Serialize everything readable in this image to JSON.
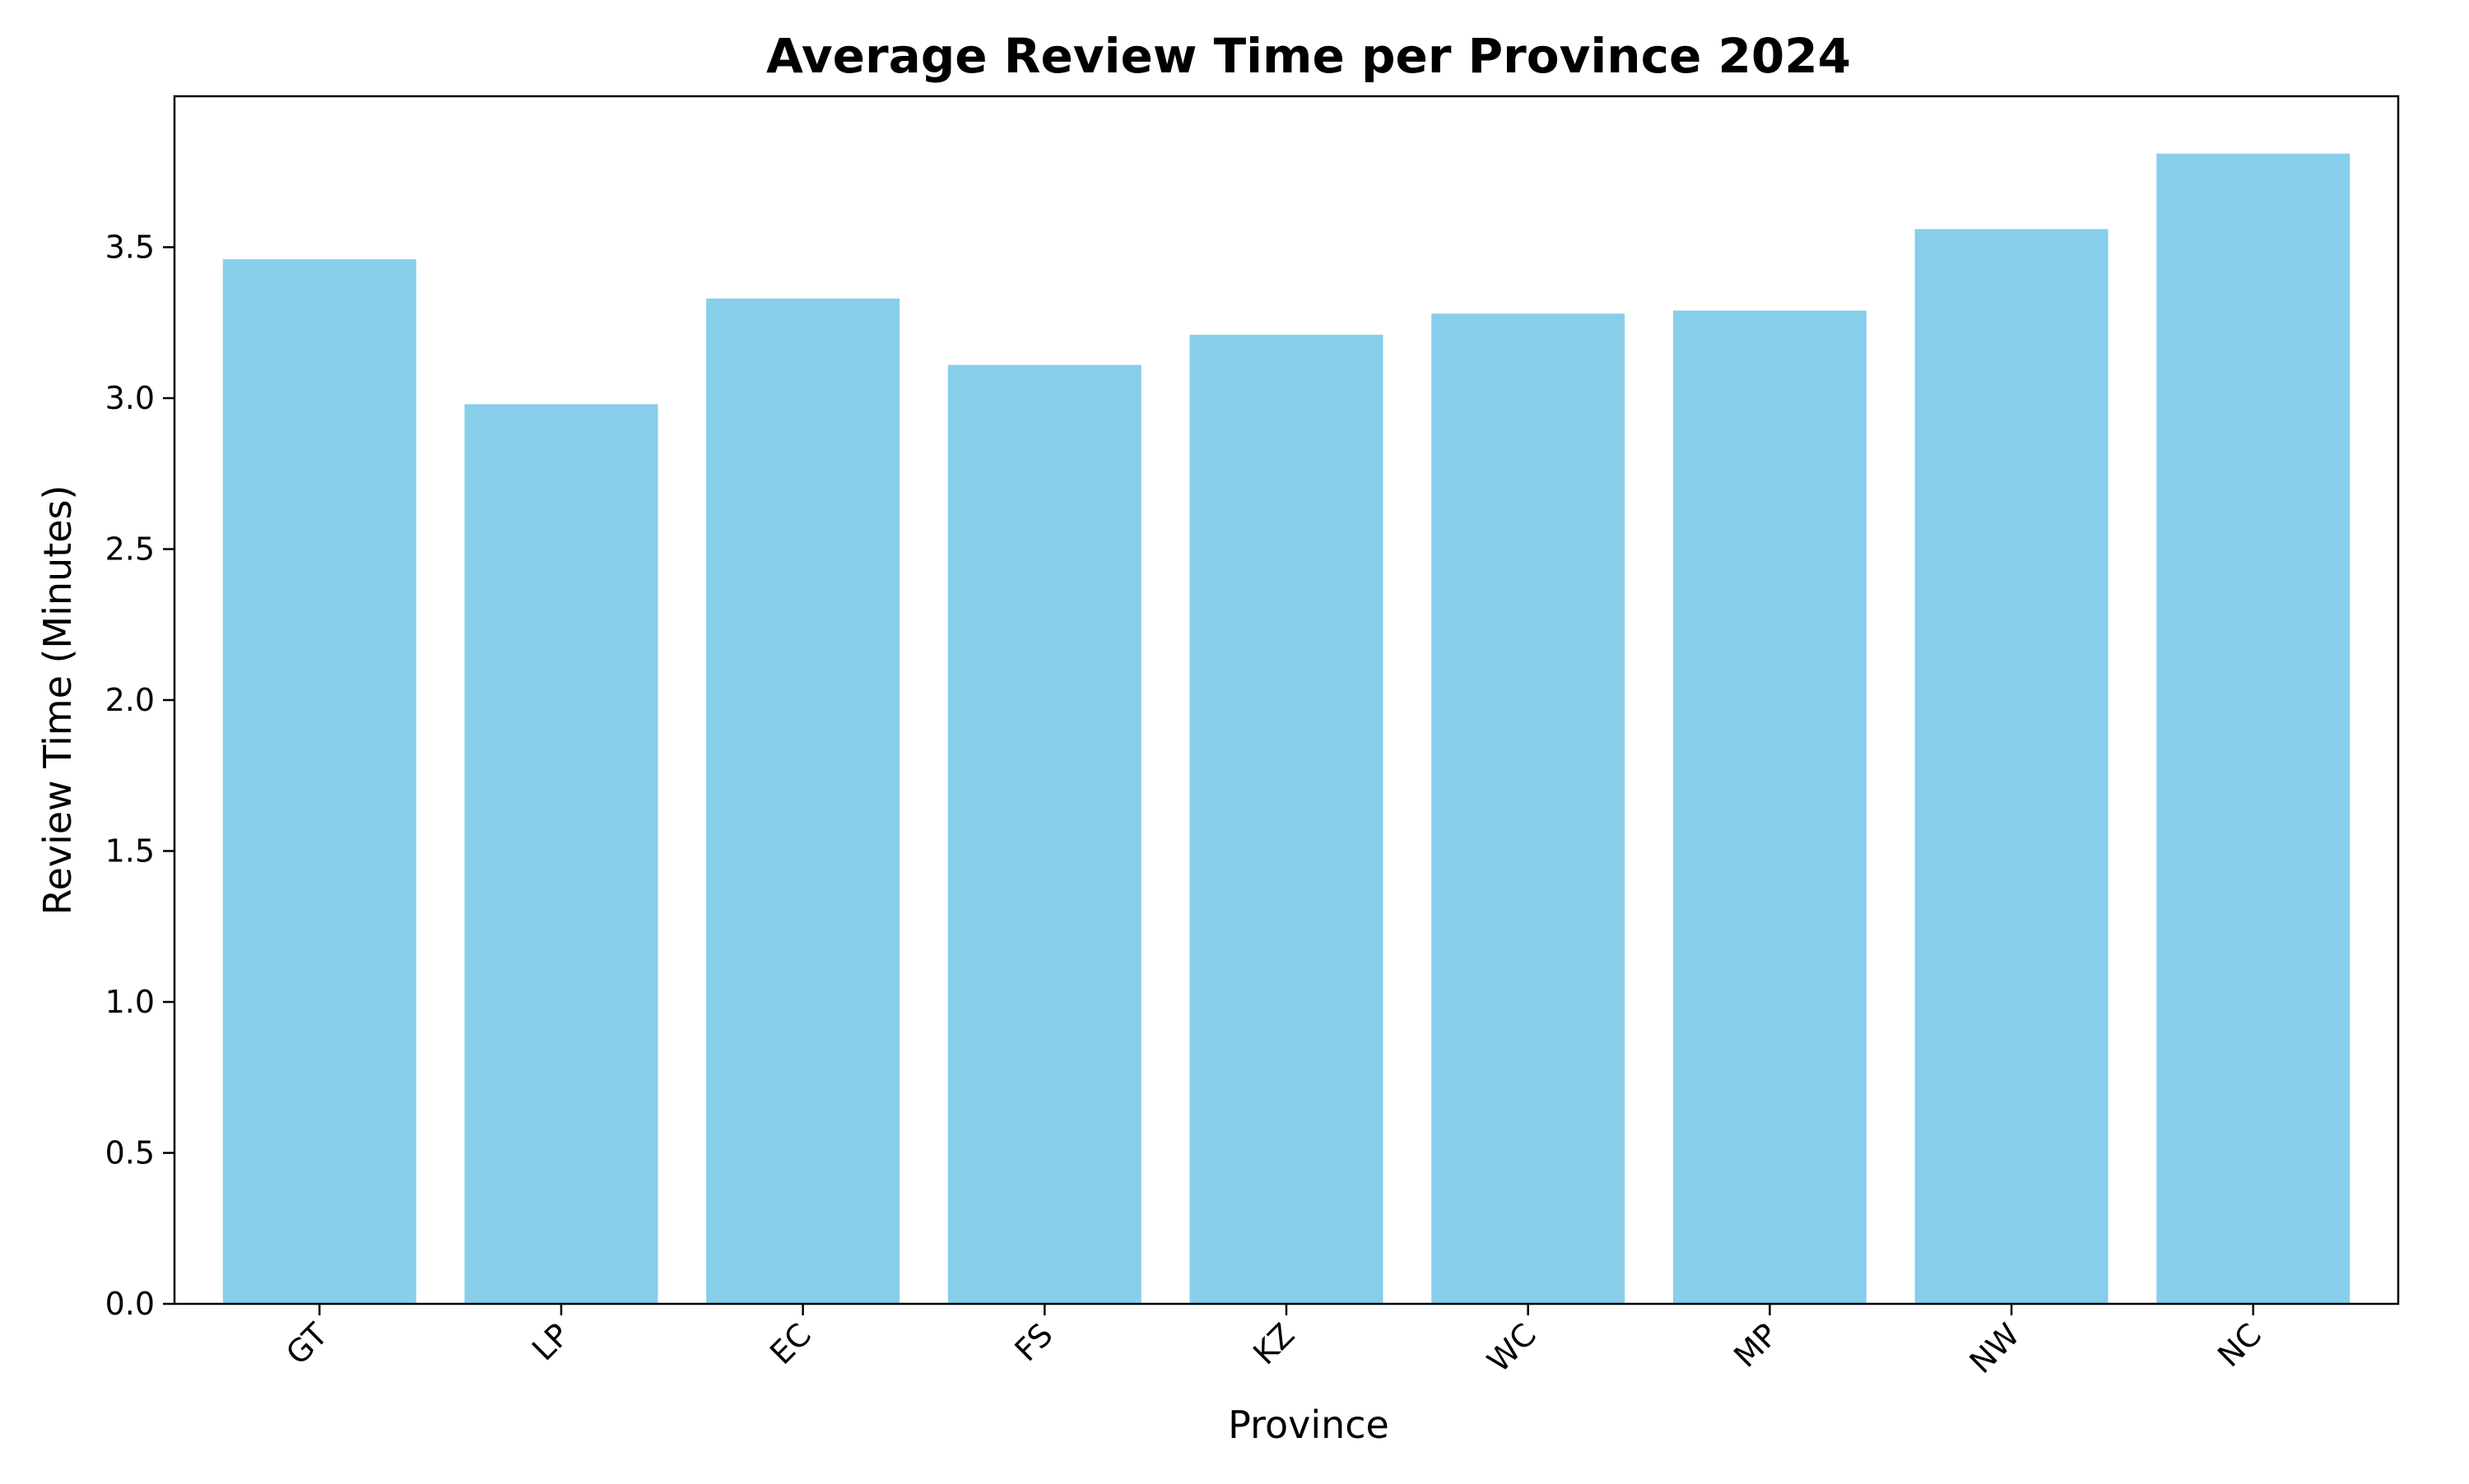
{
  "chart_data": {
    "type": "bar",
    "title": "Average Review Time per Province 2024",
    "xlabel": "Province",
    "ylabel": "Review Time (Minutes)",
    "categories": [
      "GT",
      "LP",
      "EC",
      "FS",
      "KZ",
      "WC",
      "MP",
      "NW",
      "NC"
    ],
    "values": [
      3.46,
      2.98,
      3.33,
      3.11,
      3.21,
      3.28,
      3.29,
      3.56,
      3.81
    ],
    "ylim": [
      0,
      4.0
    ],
    "yticks": [
      "0.0",
      "0.5",
      "1.0",
      "1.5",
      "2.0",
      "2.5",
      "3.0",
      "3.5"
    ],
    "bar_color": "#87CEEB",
    "grid": false,
    "legend": false
  }
}
